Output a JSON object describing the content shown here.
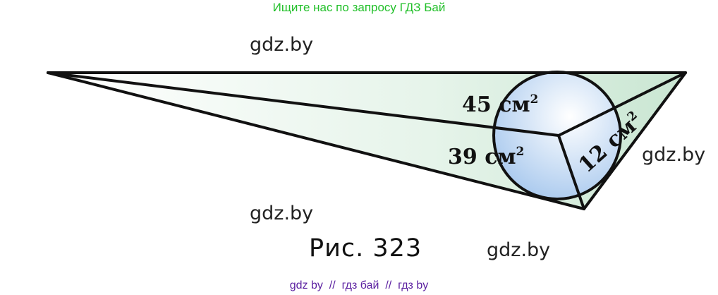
{
  "header": {
    "search_hint": "Ищите нас по запросу ГДЗ Бай"
  },
  "figure": {
    "caption": "Рис. 323",
    "labels": {
      "face_top": "45 см",
      "face_bottom": "39 см",
      "face_right": "12 см",
      "exponent": "2"
    },
    "colors": {
      "face_fill": "#d4ecdc",
      "sphere_fill": "#bcd6f2",
      "stroke": "#111111"
    }
  },
  "watermarks": [
    "gdz.by",
    "gdz.by",
    "gdz.by",
    "gdz.by"
  ],
  "footer": {
    "text": "gdz by  //  гдз бай  //  гдз by"
  }
}
